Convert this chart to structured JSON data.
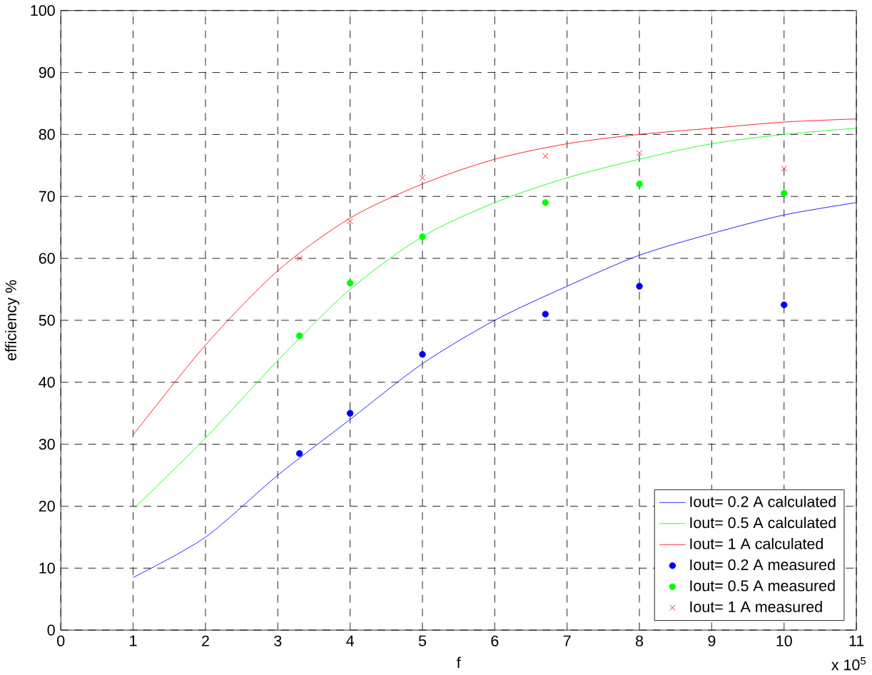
{
  "chart_data": {
    "type": "line",
    "xlabel": "f",
    "ylabel": "efficiency %",
    "xlim": [
      0,
      11
    ],
    "xticks": [
      0,
      1,
      2,
      3,
      4,
      5,
      6,
      7,
      8,
      9,
      10,
      11
    ],
    "ylim": [
      0,
      100
    ],
    "yticks": [
      0,
      10,
      20,
      30,
      40,
      50,
      60,
      70,
      80,
      90,
      100
    ],
    "grid": true,
    "legend": "bottom right",
    "annotations": [
      "x 10$^{5}$"
    ],
    "series": [
      {
        "name": "Iout= 0.2 A calculated",
        "marker": "none",
        "color": "#0000ff",
        "x": [
          1,
          2,
          3,
          4,
          5,
          6,
          7,
          8,
          9,
          10,
          11
        ],
        "values": [
          8.5,
          15,
          25,
          34,
          43,
          50,
          55.5,
          60.5,
          64,
          67,
          69
        ]
      },
      {
        "name": "Iout= 0.5 A calculated",
        "marker": "none",
        "color": "#00ff00",
        "x": [
          1,
          2,
          3,
          4,
          5,
          6,
          7,
          8,
          9,
          10,
          11
        ],
        "values": [
          19.5,
          31,
          43.5,
          55,
          63.5,
          69,
          73,
          76,
          78.5,
          80,
          81
        ]
      },
      {
        "name": "Iout= 1 A calculated",
        "marker": "none",
        "color": "#ff0000",
        "x": [
          1,
          2,
          3,
          4,
          5,
          6,
          7,
          8,
          9,
          10,
          11
        ],
        "values": [
          31.5,
          46,
          58,
          66.5,
          72,
          76,
          78.5,
          80,
          81,
          82,
          82.5
        ]
      },
      {
        "name": "Iout= 0.2 A measured",
        "type": "scatter",
        "marker": "circle",
        "color": "#0000ff",
        "x": [
          3.3,
          4,
          5,
          6.7,
          8,
          10
        ],
        "values": [
          28.5,
          35,
          44.5,
          51,
          55.5,
          52.5
        ]
      },
      {
        "name": "Iout= 0.5 A measured",
        "type": "scatter",
        "marker": "circle",
        "color": "#00ff00",
        "x": [
          3.3,
          4,
          5,
          6.7,
          8,
          10
        ],
        "values": [
          47.5,
          56,
          63.5,
          69,
          72,
          70.5
        ]
      },
      {
        "name": "Iout= 1 A measured",
        "type": "scatter",
        "marker": "cross",
        "color": "#ff0000",
        "x": [
          3.3,
          4,
          5,
          6.7,
          8,
          10
        ],
        "values": [
          60,
          66,
          73,
          76.5,
          77,
          74.5
        ]
      }
    ]
  }
}
